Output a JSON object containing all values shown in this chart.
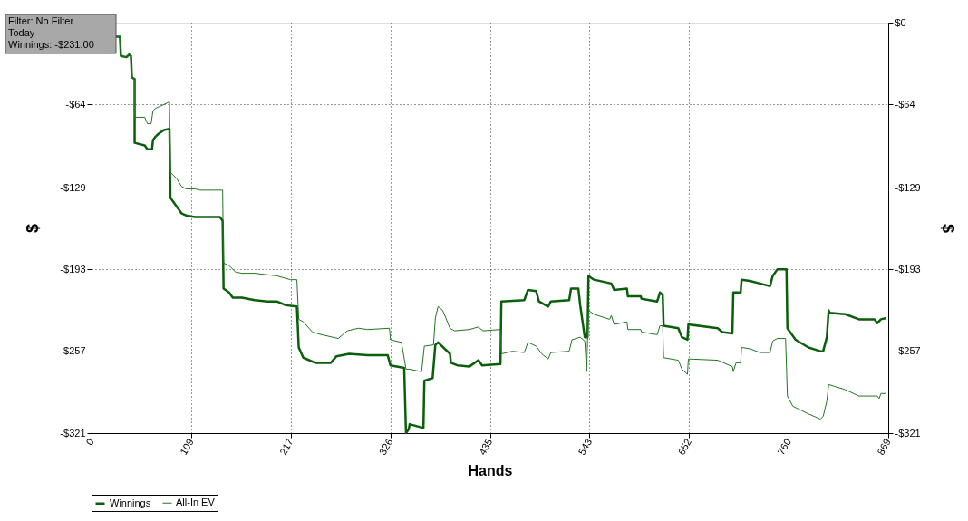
{
  "chart_data": {
    "type": "line",
    "xlabel": "Hands",
    "ylabel": "$",
    "y2label": "$",
    "annotations": [
      "Filter: No Filter",
      "Today",
      "Winnings: -$231.00"
    ],
    "xlim": [
      0,
      869
    ],
    "xticks": [
      0,
      {
        "value": 108.625,
        "label": "109"
      },
      {
        "value": 217.25,
        "label": "217"
      },
      {
        "value": 325.875,
        "label": "326"
      },
      {
        "value": 434.5,
        "label": "435"
      },
      {
        "value": 543.125,
        "label": "543"
      },
      {
        "value": 651.75,
        "label": "652"
      },
      {
        "value": 760.375,
        "label": "760"
      },
      869
    ],
    "ylim": [
      -321,
      0
    ],
    "yticks": [
      {
        "value": -64,
        "label": "-$64"
      },
      {
        "value": -129,
        "label": "-$129"
      },
      {
        "value": -193,
        "label": "-$193"
      },
      {
        "value": -257,
        "label": "-$257"
      },
      {
        "value": -321,
        "label": "-$321"
      }
    ],
    "y2lim": [
      -321,
      0
    ],
    "y2ticks": [
      {
        "value": 0,
        "label": "$0"
      },
      {
        "value": -64,
        "label": "-$64"
      },
      {
        "value": -129,
        "label": "-$129"
      },
      {
        "value": -193,
        "label": "-$193"
      },
      {
        "value": -257,
        "label": "-$257"
      },
      {
        "value": -321,
        "label": "-$321"
      }
    ],
    "grid": true,
    "legend": "bottom left",
    "line_style": "solid",
    "marker": "none",
    "series": [
      {
        "name": "Winnings",
        "color": "#0b5e0b",
        "x": [
          26,
          31,
          32,
          38,
          41,
          43,
          44,
          47,
          47,
          58,
          61,
          66,
          67,
          70,
          73,
          79,
          85,
          86,
          98,
          104,
          113,
          123,
          140,
          143,
          144,
          150,
          154,
          164,
          178,
          192,
          202,
          212,
          224,
          226,
          231,
          244,
          261,
          267,
          281,
          301,
          323,
          326,
          341,
          343,
          346,
          347,
          362,
          363,
          372,
          375,
          378,
          391,
          392,
          399,
          412,
          422,
          426,
          446,
          447,
          472,
          476,
          485,
          488,
          498,
          501,
          521,
          523,
          531,
          533,
          538,
          541,
          542,
          548,
          567,
          570,
          584,
          585,
          599,
          600,
          617,
          620,
          623,
          624,
          640,
          644,
          650,
          651,
          683,
          688,
          699,
          700,
          708,
          709,
          718,
          729,
          740,
          743,
          748,
          758,
          759,
          768,
          782,
          795,
          798,
          802,
          804,
          805,
          822,
          837,
          854,
          857,
          861,
          867
        ],
        "values": [
          -11,
          -11,
          -26,
          -27,
          -25,
          -26,
          -43,
          -44,
          -94,
          -96,
          -99,
          -99,
          -92,
          -89,
          -87,
          -84,
          -83,
          -137,
          -149,
          -151,
          -152,
          -152,
          -152,
          -155,
          -208,
          -211,
          -215,
          -215,
          -217,
          -218,
          -218,
          -221,
          -222,
          -254,
          -262,
          -266,
          -266,
          -261,
          -259,
          -260,
          -260,
          -268,
          -270,
          -321,
          -318,
          -314,
          -317,
          -280,
          -278,
          -252,
          -250,
          -259,
          -266,
          -268,
          -269,
          -264,
          -268,
          -267,
          -218,
          -217,
          -209,
          -210,
          -218,
          -222,
          -218,
          -217,
          -208,
          -208,
          -221,
          -246,
          -246,
          -198,
          -201,
          -204,
          -209,
          -208,
          -214,
          -214,
          -216,
          -218,
          -211,
          -213,
          -237,
          -239,
          -246,
          -248,
          -236,
          -239,
          -242,
          -243,
          -211,
          -211,
          -201,
          -202,
          -204,
          -206,
          -198,
          -193,
          -193,
          -239,
          -248,
          -254,
          -257,
          -257,
          -246,
          -225,
          -227,
          -228,
          -232,
          -232,
          -235,
          -232,
          -231
        ]
      },
      {
        "name": "All-In EV",
        "color": "#237523",
        "x": [
          26,
          31,
          32,
          38,
          41,
          43,
          44,
          47,
          47,
          58,
          61,
          65,
          67,
          70,
          73,
          79,
          85,
          86,
          93,
          98,
          103,
          113,
          118,
          143,
          144,
          150,
          157,
          164,
          178,
          202,
          217,
          224,
          226,
          231,
          241,
          251,
          269,
          279,
          291,
          301,
          325,
          326,
          338,
          343,
          347,
          360,
          363,
          373,
          375,
          378,
          383,
          391,
          396,
          412,
          422,
          427,
          446,
          447,
          459,
          472,
          476,
          485,
          491,
          498,
          501,
          521,
          524,
          533,
          538,
          540,
          542,
          548,
          565,
          567,
          570,
          584,
          585,
          599,
          600,
          617,
          620,
          623,
          624,
          640,
          644,
          650,
          651,
          683,
          699,
          700,
          703,
          708,
          709,
          718,
          729,
          740,
          743,
          748,
          757,
          759,
          765,
          782,
          795,
          798,
          802,
          804,
          822,
          837,
          857,
          859,
          861,
          867
        ],
        "values": [
          -11,
          -11,
          -26,
          -27,
          -25,
          -26,
          -43,
          -44,
          -74,
          -74,
          -79,
          -79,
          -69,
          -67,
          -66,
          -64,
          -62,
          -117,
          -122,
          -128,
          -130,
          -130,
          -131,
          -131,
          -188,
          -190,
          -195,
          -196,
          -196,
          -198,
          -201,
          -201,
          -232,
          -234,
          -242,
          -244,
          -247,
          -241,
          -239,
          -240,
          -239,
          -248,
          -250,
          -271,
          -271,
          -273,
          -253,
          -252,
          -231,
          -222,
          -225,
          -239,
          -241,
          -240,
          -238,
          -241,
          -240,
          -259,
          -257,
          -258,
          -250,
          -253,
          -259,
          -263,
          -258,
          -257,
          -248,
          -246,
          -249,
          -273,
          -225,
          -228,
          -232,
          -229,
          -236,
          -234,
          -240,
          -240,
          -242,
          -244,
          -237,
          -237,
          -262,
          -264,
          -271,
          -275,
          -263,
          -264,
          -269,
          -273,
          -266,
          -266,
          -254,
          -255,
          -258,
          -258,
          -249,
          -247,
          -247,
          -292,
          -300,
          -306,
          -310,
          -308,
          -296,
          -283,
          -287,
          -292,
          -292,
          -294,
          -290,
          -290
        ]
      }
    ]
  }
}
